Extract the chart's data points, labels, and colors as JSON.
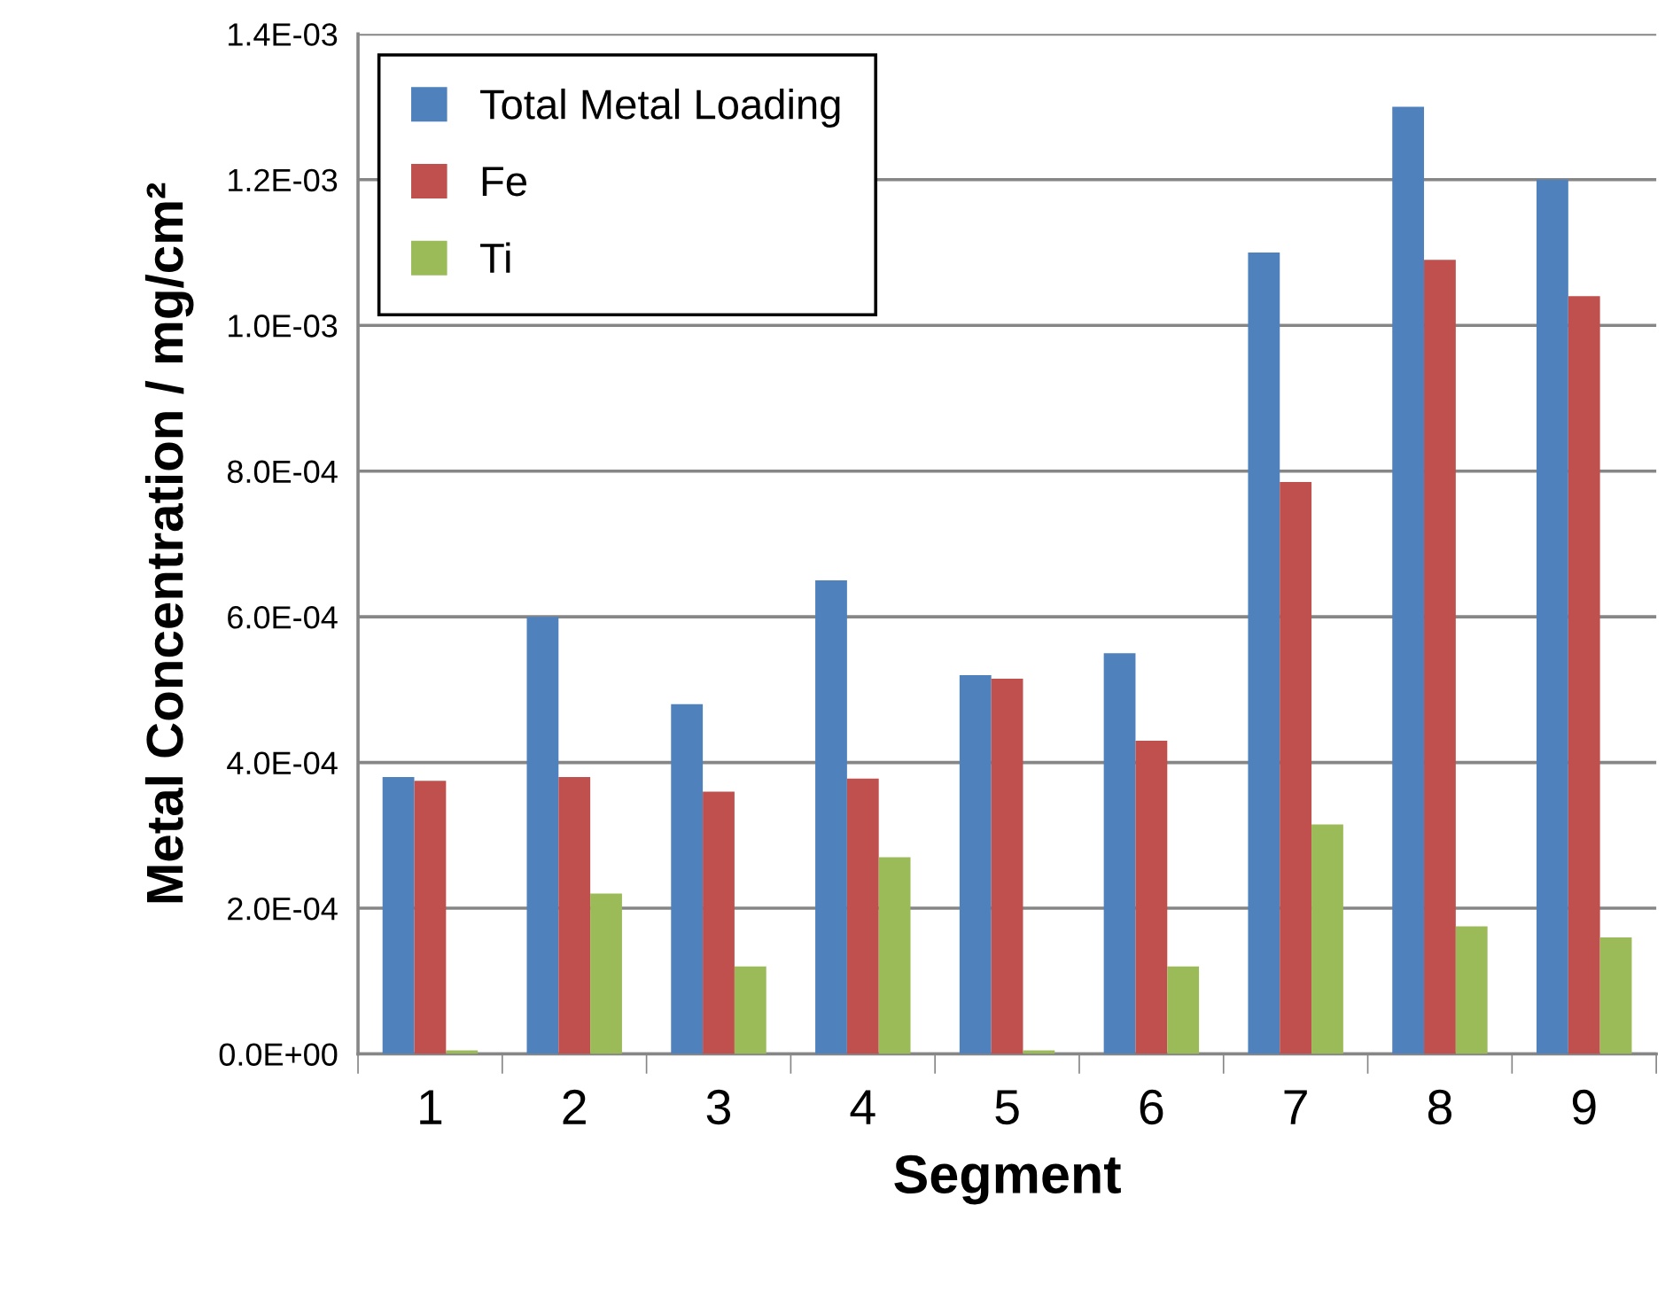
{
  "chart_data": {
    "type": "bar",
    "xlabel": "Segment",
    "ylabel": "Metal Concentration / mg/cm²",
    "categories": [
      "1",
      "2",
      "3",
      "4",
      "5",
      "6",
      "7",
      "8",
      "9"
    ],
    "series": [
      {
        "name": "Total Metal Loading",
        "color": "#4f81bd",
        "values": [
          0.00038,
          0.0006,
          0.00048,
          0.00065,
          0.00052,
          0.00055,
          0.0011,
          0.0013,
          0.0012
        ]
      },
      {
        "name": "Fe",
        "color": "#c0504d",
        "values": [
          0.000375,
          0.00038,
          0.00036,
          0.000378,
          0.000515,
          0.00043,
          0.000785,
          0.00109,
          0.00104
        ]
      },
      {
        "name": "Ti",
        "color": "#9bbb59",
        "values": [
          5e-06,
          0.00022,
          0.00012,
          0.00027,
          5e-06,
          0.00012,
          0.000315,
          0.000175,
          0.00016
        ]
      }
    ],
    "ylim": [
      0,
      0.0014
    ],
    "yticks": [
      {
        "value": 0,
        "label": "0.0E+00"
      },
      {
        "value": 0.0002,
        "label": "2.0E-04"
      },
      {
        "value": 0.0004,
        "label": "4.0E-04"
      },
      {
        "value": 0.0006,
        "label": "6.0E-04"
      },
      {
        "value": 0.0008,
        "label": "8.0E-04"
      },
      {
        "value": 0.001,
        "label": "1.0E-03"
      },
      {
        "value": 0.0012,
        "label": "1.2E-03"
      },
      {
        "value": 0.0014,
        "label": "1.4E-03"
      }
    ],
    "grid": "y",
    "legend": "top left"
  }
}
